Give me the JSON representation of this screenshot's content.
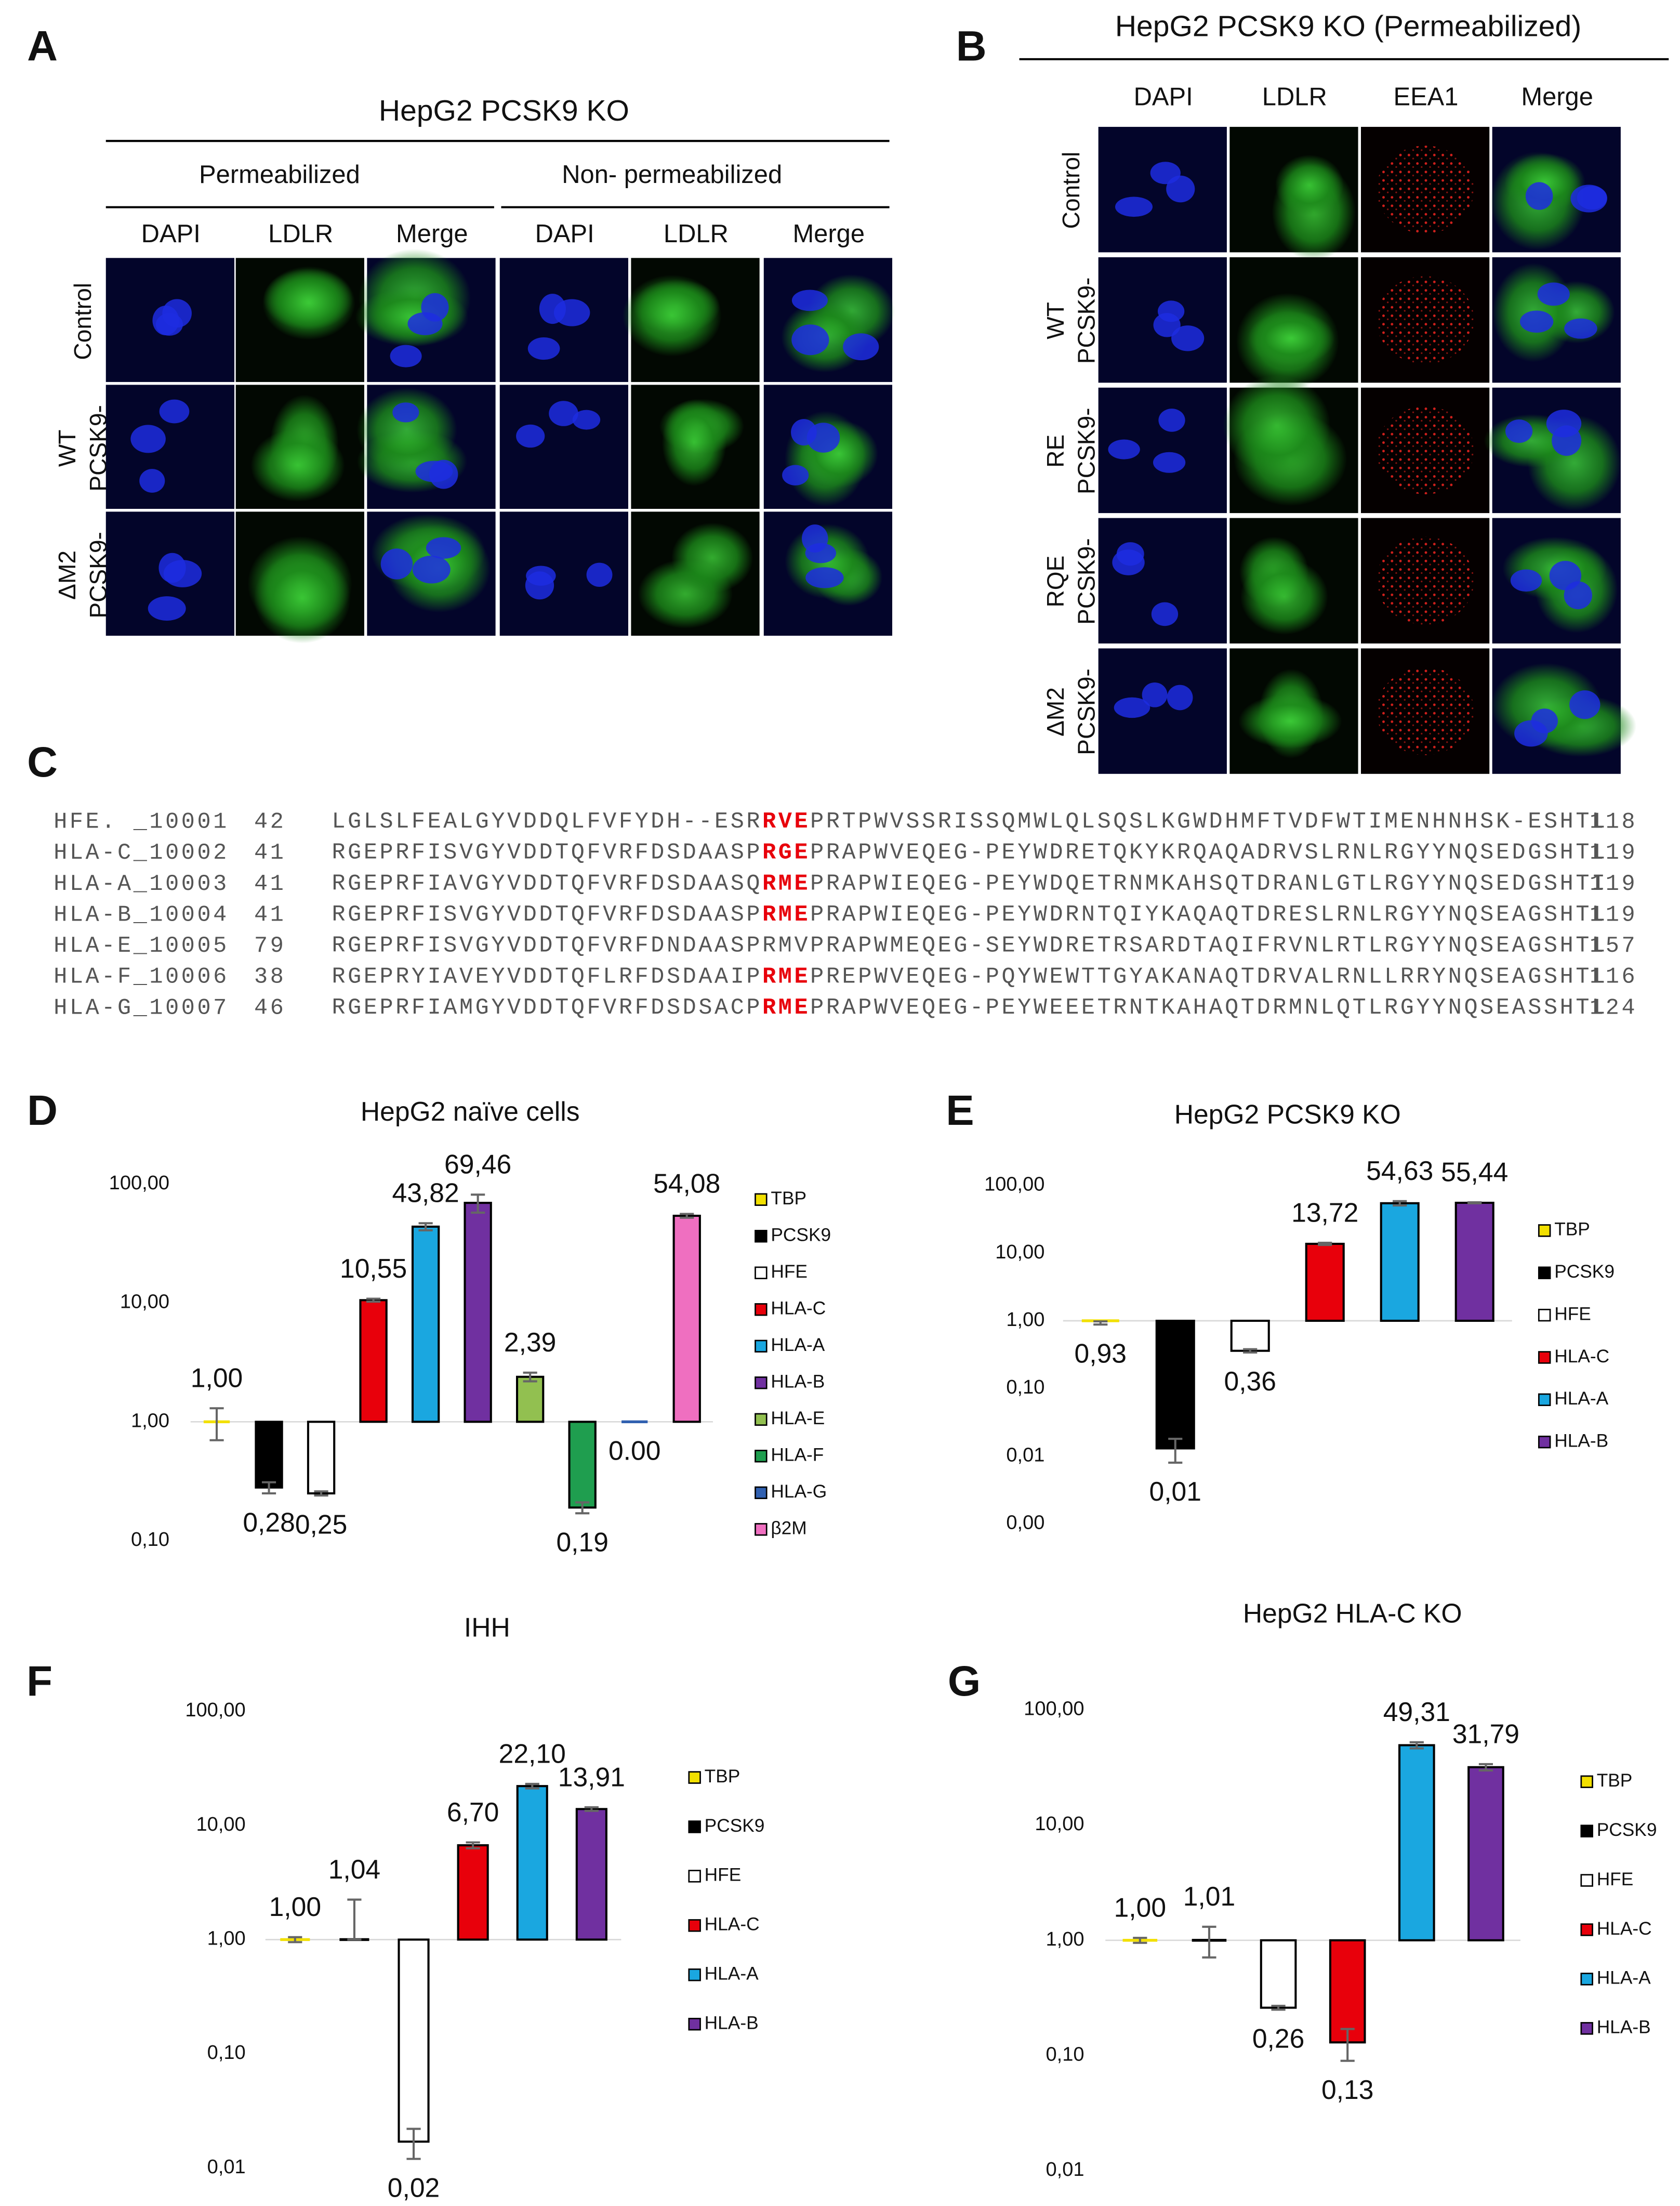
{
  "panels": {
    "A": {
      "label": "A",
      "title": "HepG2 PCSK9 KO",
      "groups": [
        "Permeabilized",
        "Non- permeabilized"
      ],
      "columns": [
        "DAPI",
        "LDLR",
        "Merge",
        "DAPI",
        "LDLR",
        "Merge"
      ],
      "rows": [
        [
          "Control"
        ],
        [
          "WT",
          "PCSK9-"
        ],
        [
          "ΔM2",
          "PCSK9-"
        ]
      ]
    },
    "B": {
      "label": "B",
      "title": "HepG2 PCSK9 KO (Permeabilized)",
      "columns": [
        "DAPI",
        "LDLR",
        "EEA1",
        "Merge"
      ],
      "rows": [
        [
          "Control"
        ],
        [
          "WT",
          "PCSK9-"
        ],
        [
          "RE",
          "PCSK9-"
        ],
        [
          "RQE",
          "PCSK9-"
        ],
        [
          "ΔM2",
          "PCSK9-"
        ]
      ]
    }
  },
  "alignment": {
    "label": "C",
    "rows": [
      {
        "name": "HFE. _10001",
        "start": 42,
        "end": 118,
        "segments": [
          {
            "text": "LGLSLFEALGYVDDQLFVFYDH--ESR",
            "red": false
          },
          {
            "text": "RVE",
            "red": true
          },
          {
            "text": "PRTPWVSSRISSQMWLQLSQSLKGWDHMFTVDFWTIMENHNHSK-ESHTL",
            "red": false
          }
        ]
      },
      {
        "name": "HLA-C_10002",
        "start": 41,
        "end": 119,
        "segments": [
          {
            "text": "RGEPRFISVGYVDDTQFVRFDSDAASP",
            "red": false
          },
          {
            "text": "RGE",
            "red": true
          },
          {
            "text": "PRAPWVEQEG-PEYWDRETQKYKRQAQADRVSLRNLRGYYNQSEDGSHTL",
            "red": false
          }
        ]
      },
      {
        "name": "HLA-A_10003",
        "start": 41,
        "end": 119,
        "segments": [
          {
            "text": "RGEPRFIAVGYVDDTQFVRFDSDAASQ",
            "red": false
          },
          {
            "text": "RME",
            "red": true
          },
          {
            "text": "PRAPWIEQEG-PEYWDQETRNMKAHSQTDRANLGTLRGYYNQSEDGSHTI",
            "red": false
          }
        ]
      },
      {
        "name": "HLA-B_10004",
        "start": 41,
        "end": 119,
        "segments": [
          {
            "text": "RGEPRFISVGYVDDTQFVRFDSDAASP",
            "red": false
          },
          {
            "text": "RME",
            "red": true
          },
          {
            "text": "PRAPWIEQEG-PEYWDRNTQIYKAQAQTDRESLRNLRGYYNQSEAGSHTL",
            "red": false
          }
        ]
      },
      {
        "name": "HLA-E_10005",
        "start": 79,
        "end": 157,
        "segments": [
          {
            "text": "RGEPRFISVGYVDDTQFVRFDNDAASPRMVPRAPWMEQEG-SEYWDRETRSARDTAQIFRVNLRTLRGYYNQSEAGSHTL",
            "red": false
          }
        ]
      },
      {
        "name": "HLA-F_10006",
        "start": 38,
        "end": 116,
        "segments": [
          {
            "text": "RGEPRYIAVEYVDDTQFLRFDSDAAIP",
            "red": false
          },
          {
            "text": "RME",
            "red": true
          },
          {
            "text": "PREPWVEQEG-PQYWEWTTGYAKANAQTDRVALRNLLRRYNQSEAGSHTL",
            "red": false
          }
        ]
      },
      {
        "name": "HLA-G_10007",
        "start": 46,
        "end": 124,
        "segments": [
          {
            "text": "RGEPRFIAMGYVDDTQFVRFDSDSACP",
            "red": false
          },
          {
            "text": "RME",
            "red": true
          },
          {
            "text": "PRAPWVEQEG-PEYWEEETRNTKAHAQTDRMNLQTLRGYYNQSEASSHTL",
            "red": false
          }
        ]
      }
    ]
  },
  "chart_data": [
    {
      "label": "D",
      "type": "bar",
      "title": "HepG2 naïve cells",
      "log_scale": true,
      "legend": "right",
      "categories": [
        "TBP",
        "PCSK9",
        "HFE",
        "HLA-C",
        "HLA-A",
        "HLA-B",
        "HLA-E",
        "HLA-F",
        "HLA-G",
        "β2M"
      ],
      "colors": [
        "#f2e000",
        "#000000",
        "#ffffff",
        "#e8000b",
        "#1aa7e0",
        "#7030a0",
        "#92c050",
        "#1f9e4f",
        "#3060b0",
        "#ef6fc0"
      ],
      "values": [
        1.0,
        0.28,
        0.25,
        10.55,
        43.82,
        69.46,
        2.39,
        0.19,
        0,
        54.08
      ],
      "value_labels": [
        "1,00",
        "0,28",
        "0,25",
        "10,55",
        "43,82",
        "69,46",
        "2,39",
        "0,19",
        "0.00",
        "54,08"
      ],
      "errors": [
        0.3,
        0.03,
        0.01,
        0.3,
        3,
        12,
        0.2,
        0.02,
        null,
        2
      ],
      "ylim": [
        0.1,
        100
      ],
      "yticks": [
        {
          "value": 0.1,
          "label": "0,10"
        },
        {
          "value": 1,
          "label": "1,00"
        },
        {
          "value": 10,
          "label": "10,00"
        },
        {
          "value": 100,
          "label": "100,00"
        }
      ]
    },
    {
      "label": "E",
      "type": "bar",
      "title": "HepG2 PCSK9 KO",
      "log_scale": true,
      "legend": "right",
      "categories": [
        "TBP",
        "PCSK9",
        "HFE",
        "HLA-C",
        "HLA-A",
        "HLA-B"
      ],
      "colors": [
        "#f2e000",
        "#000000",
        "#ffffff",
        "#e8000b",
        "#1aa7e0",
        "#7030a0"
      ],
      "values": [
        0.93,
        0.013,
        0.36,
        13.72,
        54.63,
        55.44
      ],
      "value_labels": [
        "0,93",
        "0,01",
        "0,36",
        "13,72",
        "54,63",
        "55,44"
      ],
      "errors": [
        0.05,
        0.005,
        0.02,
        0.5,
        4,
        1
      ],
      "ylim": [
        0.001,
        100
      ],
      "yticks": [
        {
          "value": 0.001,
          "label": "0,00"
        },
        {
          "value": 0.01,
          "label": "0,01"
        },
        {
          "value": 0.1,
          "label": "0,10"
        },
        {
          "value": 1,
          "label": "1,00"
        },
        {
          "value": 10,
          "label": "10,00"
        },
        {
          "value": 100,
          "label": "100,00"
        }
      ]
    },
    {
      "label": "F",
      "type": "bar",
      "title": "IHH",
      "log_scale": true,
      "legend": "right",
      "categories": [
        "TBP",
        "PCSK9",
        "HFE",
        "HLA-C",
        "HLA-A",
        "HLA-B"
      ],
      "colors": [
        "#f2e000",
        "#000000",
        "#ffffff",
        "#e8000b",
        "#1aa7e0",
        "#7030a0"
      ],
      "values": [
        1.0,
        1.04,
        0.017,
        6.7,
        22.1,
        13.91
      ],
      "value_labels": [
        "1,00",
        "1,04",
        "0,02",
        "6,70",
        "22,10",
        "13,91"
      ],
      "errors": [
        0.05,
        1.2,
        0.005,
        0.4,
        1,
        0.5
      ],
      "ylim": [
        0.01,
        100
      ],
      "yticks": [
        {
          "value": 0.01,
          "label": "0,01"
        },
        {
          "value": 0.1,
          "label": "0,10"
        },
        {
          "value": 1,
          "label": "1,00"
        },
        {
          "value": 10,
          "label": "10,00"
        },
        {
          "value": 100,
          "label": "100,00"
        }
      ]
    },
    {
      "label": "G",
      "type": "bar",
      "title": "HepG2 HLA-C KO",
      "log_scale": true,
      "legend": "right",
      "categories": [
        "TBP",
        "PCSK9",
        "HFE",
        "HLA-C",
        "HLA-A",
        "HLA-B"
      ],
      "colors": [
        "#f2e000",
        "#000000",
        "#ffffff",
        "#e8000b",
        "#1aa7e0",
        "#7030a0"
      ],
      "values": [
        1.0,
        1.01,
        0.26,
        0.13,
        49.31,
        31.79
      ],
      "value_labels": [
        "1,00",
        "1,01",
        "0,26",
        "0,13",
        "49,31",
        "31,79"
      ],
      "errors": [
        0.05,
        0.3,
        0.01,
        0.04,
        3,
        2
      ],
      "ylim": [
        0.01,
        100
      ],
      "yticks": [
        {
          "value": 0.01,
          "label": "0,01"
        },
        {
          "value": 0.1,
          "label": "0,10"
        },
        {
          "value": 1,
          "label": "1,00"
        },
        {
          "value": 10,
          "label": "10,00"
        },
        {
          "value": 100,
          "label": "100,00"
        }
      ]
    }
  ]
}
